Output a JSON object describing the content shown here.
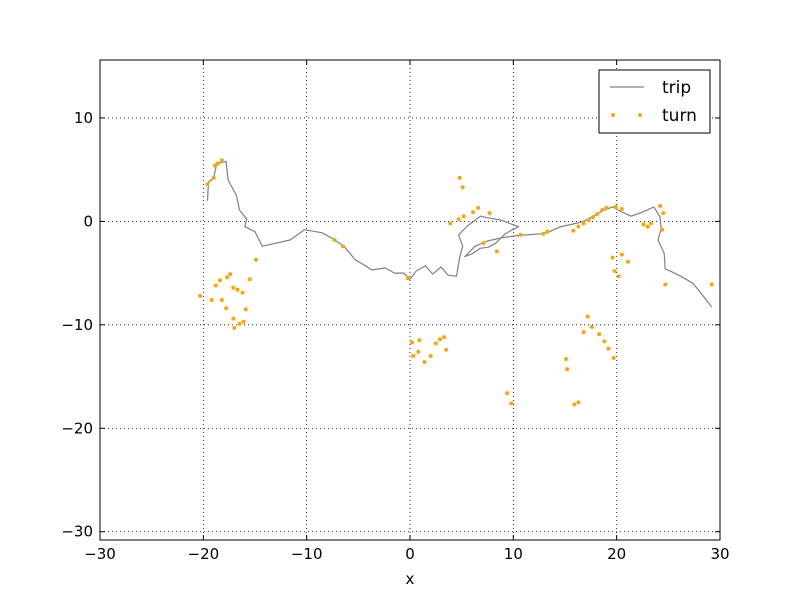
{
  "chart_data": {
    "type": "line",
    "title": "",
    "xlabel": "x",
    "ylabel": "",
    "xlim": [
      -30,
      30
    ],
    "ylim": [
      -30.8,
      15.6
    ],
    "xticks": [
      -30,
      -20,
      -10,
      0,
      10,
      20,
      30
    ],
    "yticks": [
      -30,
      -20,
      -10,
      0,
      10
    ],
    "xtick_labels": [
      "−30",
      "−20",
      "−10",
      "0",
      "10",
      "20",
      "30"
    ],
    "ytick_labels": [
      "−30",
      "−20",
      "−10",
      "0",
      "10"
    ],
    "grid": true,
    "legend_position": "top-right",
    "series": [
      {
        "name": "trip",
        "style": "line",
        "color": "#808080",
        "points": [
          [
            -19.6,
            2.0
          ],
          [
            -19.5,
            3.8
          ],
          [
            -19.0,
            4.2
          ],
          [
            -18.7,
            5.6
          ],
          [
            -17.8,
            5.8
          ],
          [
            -17.6,
            4.0
          ],
          [
            -16.8,
            2.5
          ],
          [
            -16.5,
            1.1
          ],
          [
            -15.8,
            0.2
          ],
          [
            -16.0,
            -0.5
          ],
          [
            -15.0,
            -1.0
          ],
          [
            -14.3,
            -2.4
          ],
          [
            -11.6,
            -1.8
          ],
          [
            -10.2,
            -0.8
          ],
          [
            -8.5,
            -1.1
          ],
          [
            -7.4,
            -1.7
          ],
          [
            -6.3,
            -2.5
          ],
          [
            -5.3,
            -3.7
          ],
          [
            -4.3,
            -4.3
          ],
          [
            -3.7,
            -4.7
          ],
          [
            -2.4,
            -4.5
          ],
          [
            -1.5,
            -5.0
          ],
          [
            -0.6,
            -5.0
          ],
          [
            0.0,
            -5.6
          ],
          [
            0.6,
            -4.8
          ],
          [
            1.5,
            -4.3
          ],
          [
            2.2,
            -5.1
          ],
          [
            3.0,
            -4.4
          ],
          [
            3.7,
            -5.2
          ],
          [
            4.5,
            -5.3
          ],
          [
            4.8,
            -3.5
          ],
          [
            5.1,
            -2.4
          ],
          [
            4.7,
            -1.3
          ],
          [
            5.6,
            -0.4
          ],
          [
            6.8,
            0.5
          ],
          [
            7.8,
            0.3
          ],
          [
            8.9,
            0.1
          ],
          [
            9.9,
            -0.3
          ],
          [
            10.5,
            -0.5
          ],
          [
            9.2,
            -1.2
          ],
          [
            8.3,
            -2.1
          ],
          [
            7.6,
            -2.5
          ],
          [
            6.8,
            -2.6
          ],
          [
            6.1,
            -3.1
          ],
          [
            5.3,
            -3.4
          ],
          [
            6.3,
            -2.4
          ],
          [
            7.5,
            -1.9
          ],
          [
            8.8,
            -1.6
          ],
          [
            10.2,
            -1.4
          ],
          [
            11.4,
            -1.3
          ],
          [
            12.7,
            -1.2
          ],
          [
            13.5,
            -1.0
          ],
          [
            14.6,
            -0.5
          ],
          [
            15.6,
            -0.3
          ],
          [
            16.8,
            0.0
          ],
          [
            17.9,
            0.6
          ],
          [
            18.8,
            1.1
          ],
          [
            19.6,
            1.4
          ],
          [
            20.3,
            1.0
          ],
          [
            21.4,
            0.5
          ],
          [
            22.5,
            0.9
          ],
          [
            23.6,
            1.4
          ],
          [
            24.2,
            0.4
          ],
          [
            24.3,
            -0.7
          ],
          [
            24.0,
            -1.8
          ],
          [
            24.6,
            -3.1
          ],
          [
            24.7,
            -4.6
          ],
          [
            25.4,
            -4.9
          ],
          [
            26.2,
            -5.3
          ],
          [
            27.4,
            -6.0
          ],
          [
            28.6,
            -7.5
          ],
          [
            29.2,
            -8.3
          ]
        ]
      },
      {
        "name": "turn",
        "style": "markers",
        "color": "#ffa500",
        "points": [
          [
            -20.3,
            -7.2
          ],
          [
            -19.2,
            -7.6
          ],
          [
            -18.8,
            -6.2
          ],
          [
            -18.4,
            -5.7
          ],
          [
            -18.2,
            -7.6
          ],
          [
            -17.7,
            -5.4
          ],
          [
            -17.4,
            -5.1
          ],
          [
            -17.1,
            -6.4
          ],
          [
            -16.7,
            -6.6
          ],
          [
            -16.2,
            -6.9
          ],
          [
            -17.8,
            -8.4
          ],
          [
            -17.1,
            -9.4
          ],
          [
            -17.0,
            -10.3
          ],
          [
            -16.5,
            -9.9
          ],
          [
            -16.1,
            -9.7
          ],
          [
            -15.9,
            -8.5
          ],
          [
            -15.5,
            -5.6
          ],
          [
            -14.9,
            -3.7
          ],
          [
            -19.6,
            3.6
          ],
          [
            -19.0,
            4.2
          ],
          [
            -18.9,
            5.4
          ],
          [
            -18.6,
            5.6
          ],
          [
            -18.2,
            5.9
          ],
          [
            -7.3,
            -1.8
          ],
          [
            -6.5,
            -2.4
          ],
          [
            0.3,
            -13.0
          ],
          [
            0.8,
            -12.6
          ],
          [
            1.4,
            -13.6
          ],
          [
            2.0,
            -13.0
          ],
          [
            0.2,
            -11.7
          ],
          [
            0.9,
            -11.5
          ],
          [
            2.5,
            -11.8
          ],
          [
            2.9,
            -11.4
          ],
          [
            3.3,
            -11.2
          ],
          [
            3.5,
            -12.4
          ],
          [
            -0.2,
            -5.5
          ],
          [
            3.9,
            -0.2
          ],
          [
            4.7,
            0.2
          ],
          [
            5.2,
            0.5
          ],
          [
            6.1,
            0.9
          ],
          [
            6.6,
            1.3
          ],
          [
            7.7,
            0.8
          ],
          [
            4.8,
            4.2
          ],
          [
            5.1,
            3.3
          ],
          [
            7.1,
            -2.1
          ],
          [
            8.4,
            -2.9
          ],
          [
            10.7,
            -1.3
          ],
          [
            12.9,
            -1.2
          ],
          [
            13.3,
            -1.0
          ],
          [
            15.8,
            -0.9
          ],
          [
            16.3,
            -0.5
          ],
          [
            16.8,
            -0.2
          ],
          [
            17.3,
            0.1
          ],
          [
            17.7,
            0.4
          ],
          [
            18.1,
            0.7
          ],
          [
            18.6,
            1.1
          ],
          [
            19.0,
            1.3
          ],
          [
            19.9,
            1.4
          ],
          [
            20.5,
            1.2
          ],
          [
            22.6,
            -0.3
          ],
          [
            23.0,
            -0.5
          ],
          [
            23.3,
            -0.2
          ],
          [
            24.2,
            1.5
          ],
          [
            24.5,
            0.8
          ],
          [
            24.4,
            -0.8
          ],
          [
            19.6,
            -3.5
          ],
          [
            19.8,
            -4.8
          ],
          [
            20.2,
            -5.3
          ],
          [
            20.5,
            -3.2
          ],
          [
            21.1,
            -3.9
          ],
          [
            24.7,
            -6.1
          ],
          [
            29.2,
            -6.1
          ],
          [
            17.2,
            -9.2
          ],
          [
            17.6,
            -10.2
          ],
          [
            18.3,
            -10.9
          ],
          [
            18.8,
            -11.6
          ],
          [
            19.2,
            -12.3
          ],
          [
            19.7,
            -13.2
          ],
          [
            16.8,
            -10.7
          ],
          [
            15.1,
            -13.3
          ],
          [
            15.2,
            -14.3
          ],
          [
            15.9,
            -17.7
          ],
          [
            16.3,
            -17.5
          ],
          [
            9.4,
            -16.6
          ],
          [
            9.8,
            -17.6
          ]
        ]
      }
    ]
  },
  "legend": {
    "entries": [
      {
        "label": "trip",
        "style": "line",
        "color": "#808080"
      },
      {
        "label": "turn",
        "style": "markers",
        "color": "#ffa500"
      }
    ]
  }
}
